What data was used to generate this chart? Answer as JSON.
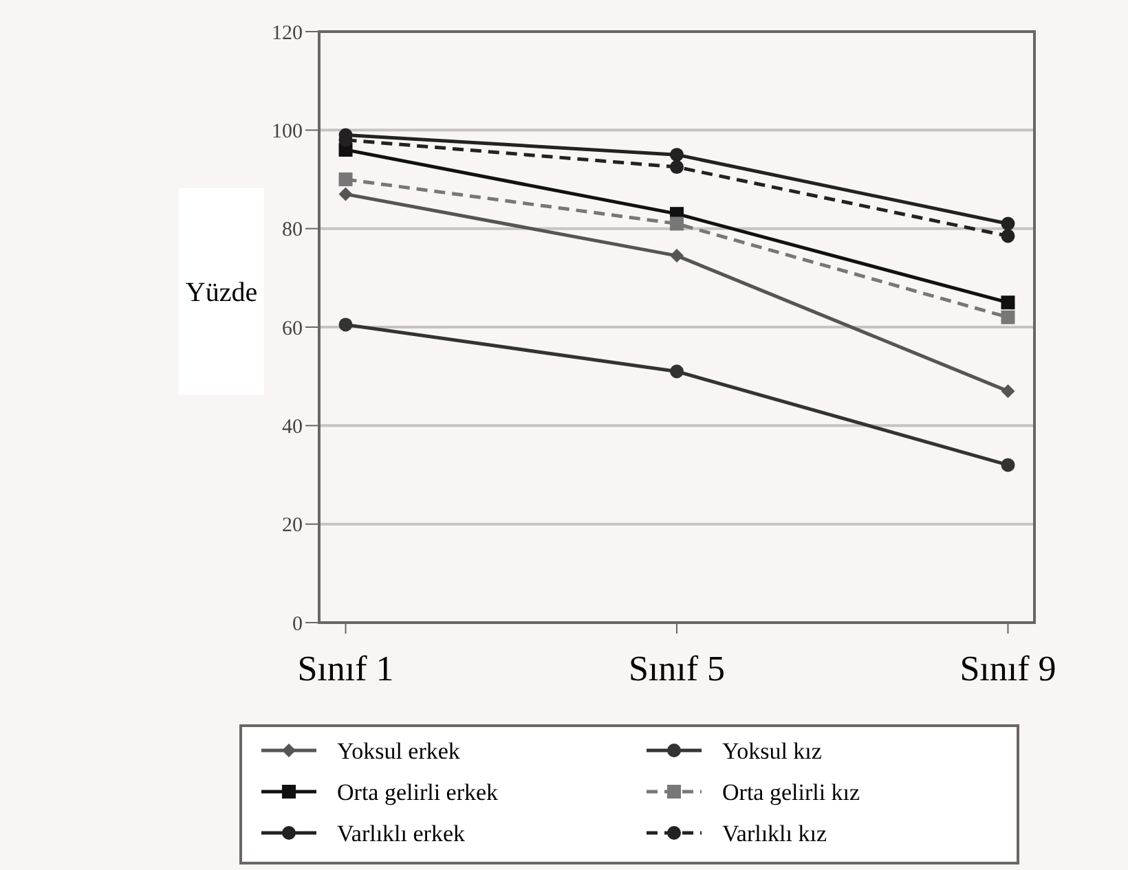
{
  "chart_data": {
    "type": "line",
    "ylabel": "Yüzde",
    "categories": [
      "Sınıf 1",
      "Sınıf 5",
      "Sınıf 9"
    ],
    "ylim": [
      0,
      120
    ],
    "yticks": [
      0,
      20,
      40,
      60,
      80,
      100,
      120
    ],
    "grid": "y",
    "legend": "bottom",
    "series": [
      {
        "name": "Yoksul erkek",
        "color": "#555555",
        "marker": "diamond",
        "line_style": "solid",
        "values": [
          87,
          74.5,
          47
        ]
      },
      {
        "name": "Yoksul kız",
        "color": "#333333",
        "marker": "circle",
        "line_style": "solid",
        "values": [
          60.5,
          51,
          32
        ]
      },
      {
        "name": "Orta gelirli erkek",
        "color": "#111111",
        "marker": "square",
        "line_style": "solid",
        "values": [
          96,
          83,
          65
        ]
      },
      {
        "name": "Orta gelirli kız",
        "color": "#777777",
        "marker": "square",
        "line_style": "dashed",
        "values": [
          90,
          81,
          62
        ]
      },
      {
        "name": "Varlıklı erkek",
        "color": "#222222",
        "marker": "circle",
        "line_style": "solid",
        "values": [
          99,
          95,
          81
        ]
      },
      {
        "name": "Varlıklı kız",
        "color": "#222222",
        "marker": "circle",
        "line_style": "dashed",
        "values": [
          98,
          92.5,
          78.5
        ]
      }
    ]
  }
}
